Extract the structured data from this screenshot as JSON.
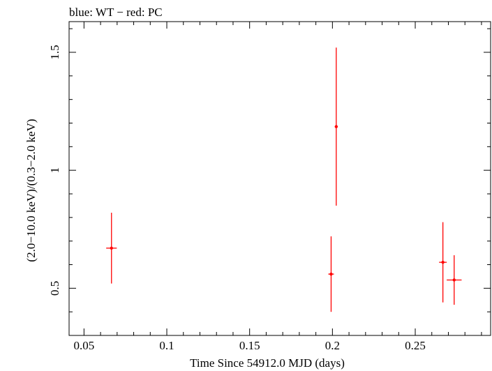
{
  "chart_data": {
    "type": "scatter",
    "title": "blue: WT − red: PC",
    "xlabel": "Time Since 54912.0 MJD (days)",
    "ylabel": "(2.0−10.0 keV)/(0.3−2.0 keV)",
    "xlim": [
      0.041,
      0.2955
    ],
    "ylim": [
      0.3,
      1.63
    ],
    "x_ticks": [
      {
        "value": 0.05,
        "label": "0.05"
      },
      {
        "value": 0.1,
        "label": "0.1"
      },
      {
        "value": 0.15,
        "label": "0.15"
      },
      {
        "value": 0.2,
        "label": "0.2"
      },
      {
        "value": 0.25,
        "label": "0.25"
      }
    ],
    "y_ticks": [
      {
        "value": 0.5,
        "label": "0.5"
      },
      {
        "value": 1.0,
        "label": "1"
      },
      {
        "value": 1.5,
        "label": "1.5"
      }
    ],
    "series": [
      {
        "name": "PC",
        "color": "#ff0000",
        "points": [
          {
            "x": 0.0666,
            "xerr": 0.0032,
            "y": 0.67,
            "yerr_low": 0.15,
            "yerr_high": 0.15
          },
          {
            "x": 0.1992,
            "xerr": 0.0017,
            "y": 0.56,
            "yerr_low": 0.16,
            "yerr_high": 0.16
          },
          {
            "x": 0.2023,
            "xerr": 0.0008,
            "y": 1.185,
            "yerr_low": 0.335,
            "yerr_high": 0.335
          },
          {
            "x": 0.2667,
            "xerr": 0.0023,
            "y": 0.61,
            "yerr_low": 0.17,
            "yerr_high": 0.17
          },
          {
            "x": 0.2735,
            "xerr": 0.0045,
            "y": 0.535,
            "yerr_low": 0.105,
            "yerr_high": 0.105
          }
        ]
      }
    ]
  }
}
